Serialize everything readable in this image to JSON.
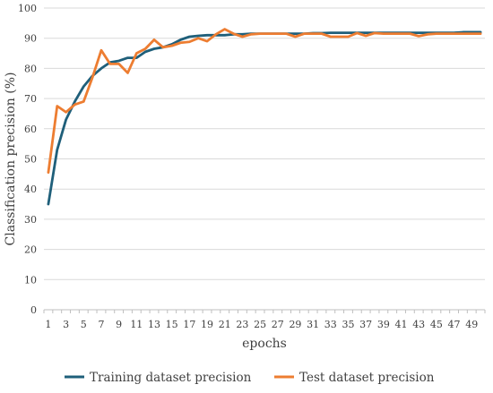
{
  "chart_data": {
    "type": "line",
    "title": "",
    "xlabel": "epochs",
    "ylabel": "Classification precision (%)",
    "ylim": [
      0,
      100
    ],
    "yticks": [
      0,
      10,
      20,
      30,
      40,
      50,
      60,
      70,
      80,
      90,
      100
    ],
    "xtick_labels": [
      "1",
      "3",
      "5",
      "7",
      "9",
      "11",
      "13",
      "15",
      "17",
      "19",
      "21",
      "23",
      "25",
      "27",
      "29",
      "31",
      "33",
      "35",
      "37",
      "39",
      "41",
      "43",
      "45",
      "47",
      "49"
    ],
    "grid": "horizontal",
    "legend_position": "bottom",
    "x": [
      1,
      2,
      3,
      4,
      5,
      6,
      7,
      8,
      9,
      10,
      11,
      12,
      13,
      14,
      15,
      16,
      17,
      18,
      19,
      20,
      21,
      22,
      23,
      24,
      25,
      26,
      27,
      28,
      29,
      30,
      31,
      32,
      33,
      34,
      35,
      36,
      37,
      38,
      39,
      40,
      41,
      42,
      43,
      44,
      45,
      46,
      47,
      48,
      49,
      50
    ],
    "series": [
      {
        "name": "Training dataset precision",
        "color": "#1F5F7A",
        "values": [
          35,
          53,
          63,
          69,
          74,
          77.5,
          80,
          82,
          82.5,
          83.5,
          83.5,
          85.5,
          86.5,
          87,
          88,
          89.5,
          90.5,
          90.8,
          91,
          91,
          91,
          91.3,
          91.3,
          91.5,
          91.5,
          91.5,
          91.5,
          91.5,
          91.5,
          91.5,
          91.7,
          91.7,
          91.8,
          91.8,
          91.8,
          91.8,
          91.8,
          91.8,
          91.8,
          91.8,
          91.8,
          91.8,
          91.8,
          91.8,
          91.8,
          91.8,
          91.8,
          92,
          92,
          92
        ]
      },
      {
        "name": "Test dataset precision",
        "color": "#ED7D31",
        "values": [
          45.5,
          67.5,
          65.5,
          68,
          69,
          77,
          86,
          81.5,
          81.5,
          78.5,
          85,
          86.5,
          89.5,
          87,
          87.5,
          88.5,
          88.8,
          90,
          89,
          91.3,
          93,
          91.5,
          90.5,
          91.3,
          91.5,
          91.5,
          91.5,
          91.5,
          90.5,
          91.5,
          91.5,
          91.5,
          90.5,
          90.5,
          90.5,
          91.7,
          90.8,
          91.7,
          91.5,
          91.5,
          91.5,
          91.5,
          90.7,
          91.3,
          91.5,
          91.5,
          91.5,
          91.5,
          91.5,
          91.5
        ]
      }
    ]
  }
}
